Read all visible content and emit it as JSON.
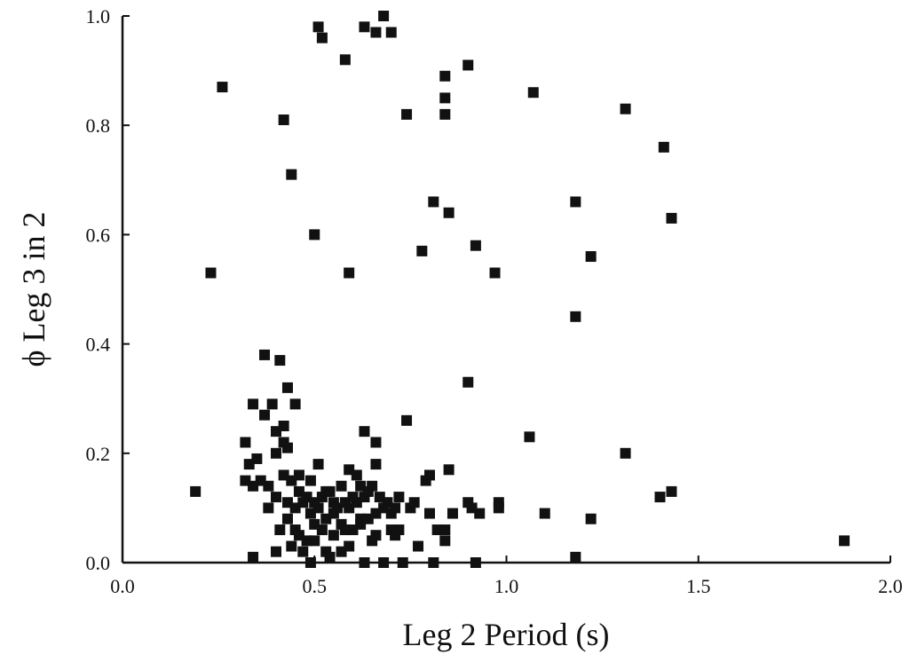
{
  "chart_data": {
    "type": "scatter",
    "xlabel": "Leg 2 Period (s)",
    "ylabel": "ϕ Leg 3 in 2",
    "xlim": [
      0.0,
      2.0
    ],
    "ylim": [
      0.0,
      1.0
    ],
    "xticks": [
      "0.0",
      "0.5",
      "1.0",
      "1.5",
      "2.0"
    ],
    "yticks": [
      "0.0",
      "0.2",
      "0.4",
      "0.6",
      "0.8",
      "1.0"
    ],
    "grid": false,
    "marker": "filled-square",
    "marker_color": "#111111",
    "points": [
      [
        0.19,
        0.13
      ],
      [
        0.23,
        0.53
      ],
      [
        0.26,
        0.87
      ],
      [
        0.42,
        0.81
      ],
      [
        0.44,
        0.71
      ],
      [
        0.5,
        0.6
      ],
      [
        0.51,
        0.98
      ],
      [
        0.52,
        0.96
      ],
      [
        0.58,
        0.92
      ],
      [
        0.59,
        0.53
      ],
      [
        0.63,
        0.98
      ],
      [
        0.66,
        0.97
      ],
      [
        0.68,
        1.0
      ],
      [
        0.7,
        0.97
      ],
      [
        0.74,
        0.82
      ],
      [
        0.78,
        0.57
      ],
      [
        0.81,
        0.66
      ],
      [
        0.84,
        0.89
      ],
      [
        0.84,
        0.85
      ],
      [
        0.84,
        0.82
      ],
      [
        0.85,
        0.64
      ],
      [
        0.9,
        0.91
      ],
      [
        0.92,
        0.58
      ],
      [
        0.97,
        0.53
      ],
      [
        1.07,
        0.86
      ],
      [
        1.18,
        0.66
      ],
      [
        1.18,
        0.45
      ],
      [
        1.22,
        0.56
      ],
      [
        1.31,
        0.83
      ],
      [
        1.41,
        0.76
      ],
      [
        1.43,
        0.63
      ],
      [
        0.9,
        0.33
      ],
      [
        0.74,
        0.26
      ],
      [
        0.37,
        0.38
      ],
      [
        0.41,
        0.37
      ],
      [
        0.43,
        0.32
      ],
      [
        0.34,
        0.29
      ],
      [
        0.37,
        0.27
      ],
      [
        0.39,
        0.29
      ],
      [
        0.45,
        0.29
      ],
      [
        0.4,
        0.24
      ],
      [
        0.42,
        0.25
      ],
      [
        0.42,
        0.22
      ],
      [
        0.32,
        0.22
      ],
      [
        0.33,
        0.18
      ],
      [
        0.35,
        0.19
      ],
      [
        0.4,
        0.2
      ],
      [
        0.43,
        0.21
      ],
      [
        0.51,
        0.18
      ],
      [
        0.32,
        0.15
      ],
      [
        0.34,
        0.14
      ],
      [
        0.38,
        0.1
      ],
      [
        0.4,
        0.12
      ],
      [
        0.43,
        0.11
      ],
      [
        0.46,
        0.16
      ],
      [
        0.49,
        0.15
      ],
      [
        0.53,
        0.13
      ],
      [
        0.55,
        0.11
      ],
      [
        0.57,
        0.14
      ],
      [
        0.59,
        0.17
      ],
      [
        0.61,
        0.16
      ],
      [
        0.63,
        0.12
      ],
      [
        0.65,
        0.14
      ],
      [
        0.66,
        0.18
      ],
      [
        0.63,
        0.24
      ],
      [
        0.66,
        0.22
      ],
      [
        0.67,
        0.12
      ],
      [
        0.69,
        0.11
      ],
      [
        0.71,
        0.1
      ],
      [
        0.72,
        0.12
      ],
      [
        0.75,
        0.1
      ],
      [
        0.76,
        0.11
      ],
      [
        0.79,
        0.15
      ],
      [
        0.8,
        0.16
      ],
      [
        0.85,
        0.17
      ],
      [
        0.8,
        0.09
      ],
      [
        0.82,
        0.06
      ],
      [
        0.84,
        0.04
      ],
      [
        0.86,
        0.09
      ],
      [
        0.9,
        0.11
      ],
      [
        0.91,
        0.1
      ],
      [
        0.93,
        0.09
      ],
      [
        0.98,
        0.11
      ],
      [
        0.98,
        0.1
      ],
      [
        1.06,
        0.23
      ],
      [
        1.1,
        0.09
      ],
      [
        1.22,
        0.08
      ],
      [
        1.31,
        0.2
      ],
      [
        1.4,
        0.12
      ],
      [
        1.43,
        0.13
      ],
      [
        1.18,
        0.01
      ],
      [
        1.88,
        0.04
      ],
      [
        0.34,
        0.01
      ],
      [
        0.4,
        0.02
      ],
      [
        0.44,
        0.03
      ],
      [
        0.46,
        0.05
      ],
      [
        0.48,
        0.04
      ],
      [
        0.5,
        0.07
      ],
      [
        0.52,
        0.06
      ],
      [
        0.54,
        0.01
      ],
      [
        0.57,
        0.02
      ],
      [
        0.59,
        0.03
      ],
      [
        0.6,
        0.06
      ],
      [
        0.62,
        0.08
      ],
      [
        0.63,
        0.0
      ],
      [
        0.65,
        0.04
      ],
      [
        0.68,
        0.0
      ],
      [
        0.7,
        0.06
      ],
      [
        0.71,
        0.05
      ],
      [
        0.73,
        0.0
      ],
      [
        0.77,
        0.03
      ],
      [
        0.81,
        0.0
      ],
      [
        0.84,
        0.06
      ],
      [
        0.92,
        0.0
      ],
      [
        0.41,
        0.06
      ],
      [
        0.43,
        0.08
      ],
      [
        0.45,
        0.1
      ],
      [
        0.47,
        0.11
      ],
      [
        0.49,
        0.09
      ],
      [
        0.51,
        0.1
      ],
      [
        0.53,
        0.08
      ],
      [
        0.55,
        0.09
      ],
      [
        0.57,
        0.07
      ],
      [
        0.59,
        0.1
      ],
      [
        0.61,
        0.11
      ],
      [
        0.62,
        0.07
      ],
      [
        0.64,
        0.08
      ],
      [
        0.66,
        0.09
      ],
      [
        0.68,
        0.1
      ],
      [
        0.7,
        0.09
      ],
      [
        0.72,
        0.06
      ],
      [
        0.46,
        0.13
      ],
      [
        0.48,
        0.12
      ],
      [
        0.5,
        0.11
      ],
      [
        0.52,
        0.12
      ],
      [
        0.54,
        0.13
      ],
      [
        0.56,
        0.1
      ],
      [
        0.58,
        0.11
      ],
      [
        0.6,
        0.12
      ],
      [
        0.62,
        0.14
      ],
      [
        0.64,
        0.13
      ],
      [
        0.44,
        0.15
      ],
      [
        0.42,
        0.16
      ],
      [
        0.38,
        0.14
      ],
      [
        0.36,
        0.15
      ],
      [
        0.5,
        0.04
      ],
      [
        0.53,
        0.02
      ],
      [
        0.47,
        0.02
      ],
      [
        0.55,
        0.05
      ],
      [
        0.45,
        0.06
      ],
      [
        0.49,
        0.0
      ],
      [
        0.58,
        0.06
      ],
      [
        0.66,
        0.05
      ]
    ]
  }
}
